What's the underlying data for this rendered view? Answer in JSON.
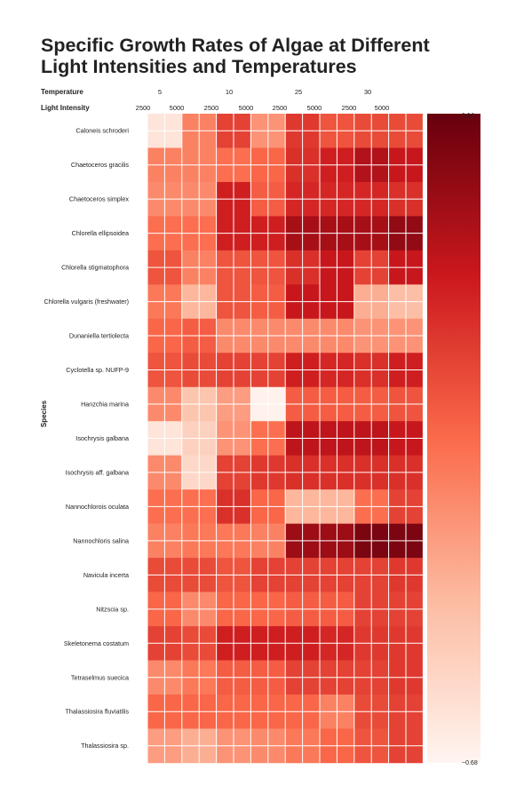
{
  "chart_data": {
    "type": "heatmap",
    "title": "Specific Growth Rates of Algae at Different Light Intensities and Temperatures",
    "row_axis_label": "Species",
    "header_labels": {
      "temperature": "Temperature",
      "light": "Light Intensity"
    },
    "temperatures": [
      "5",
      "10",
      "25",
      "30"
    ],
    "light_intensity_labels": [
      "2500",
      "5000"
    ],
    "colorbar": {
      "min_label": "−0.68",
      "max_label": "1.14",
      "min": -0.68,
      "max": 1.14,
      "colors": [
        "#fff5f0",
        "#fcbba1",
        "#fb6a4a",
        "#cb181d",
        "#67000d"
      ]
    },
    "species": [
      "Caloneis schroderi",
      "Chaetoceros gracilis",
      "Chaetoceros simplex",
      "Chlorella ellipsoidea",
      "Chlorella stigmatophora",
      "Chlorella vulgaris (freshwater)",
      "Dunaniella tertiolecta",
      "Cyclotella sp. NUFP-9",
      "Hanzchia marina",
      "Isochrysis galbana",
      "Isochrysis aff. galbana",
      "Nannochlorois oculata",
      "Nannochloris salina",
      "Navicula incerta",
      "Nitzscia sp.",
      "Skeletonema costatum",
      "Tetraselmus suecica",
      "Thalassiosira fluviatilis",
      "Thalassiosira sp."
    ],
    "values": [
      [
        -0.55,
        -0.55,
        0.1,
        0.1,
        0.45,
        0.45,
        0.0,
        0.0,
        0.5,
        0.5,
        0.35,
        0.35,
        0.4,
        0.4,
        0.4,
        0.4
      ],
      [
        0.1,
        0.1,
        0.1,
        0.1,
        0.2,
        0.2,
        0.25,
        0.25,
        0.55,
        0.55,
        0.65,
        0.65,
        0.8,
        0.8,
        0.7,
        0.7
      ],
      [
        0.05,
        0.05,
        0.05,
        0.05,
        0.65,
        0.65,
        0.3,
        0.3,
        0.6,
        0.6,
        0.6,
        0.6,
        0.6,
        0.6,
        0.55,
        0.55
      ],
      [
        0.2,
        0.2,
        0.2,
        0.2,
        0.65,
        0.65,
        0.65,
        0.65,
        0.85,
        0.85,
        0.85,
        0.85,
        0.85,
        0.85,
        0.95,
        0.95
      ],
      [
        0.35,
        0.35,
        0.1,
        0.1,
        0.35,
        0.35,
        0.35,
        0.35,
        0.55,
        0.55,
        0.7,
        0.7,
        0.45,
        0.45,
        0.7,
        0.7
      ],
      [
        0.15,
        0.15,
        -0.2,
        -0.2,
        0.35,
        0.35,
        0.3,
        0.3,
        0.7,
        0.7,
        0.7,
        0.7,
        -0.15,
        -0.15,
        -0.25,
        -0.25
      ],
      [
        0.25,
        0.25,
        0.3,
        0.3,
        0.05,
        0.05,
        0.05,
        0.05,
        0.05,
        0.05,
        0.05,
        0.05,
        0.0,
        0.0,
        0.0,
        0.0
      ],
      [
        0.35,
        0.35,
        0.4,
        0.4,
        0.45,
        0.45,
        0.45,
        0.45,
        0.65,
        0.65,
        0.6,
        0.6,
        0.55,
        0.55,
        0.65,
        0.65
      ],
      [
        0.05,
        0.05,
        -0.3,
        -0.3,
        -0.05,
        -0.05,
        -0.65,
        -0.65,
        0.3,
        0.3,
        0.3,
        0.3,
        0.3,
        0.3,
        0.35,
        0.35
      ],
      [
        -0.55,
        -0.55,
        -0.4,
        -0.4,
        0.0,
        0.0,
        0.2,
        0.2,
        0.75,
        0.75,
        0.75,
        0.75,
        0.75,
        0.75,
        0.7,
        0.7
      ],
      [
        0.05,
        0.05,
        -0.45,
        -0.45,
        0.45,
        0.45,
        0.5,
        0.5,
        0.55,
        0.55,
        0.55,
        0.55,
        0.55,
        0.55,
        0.55,
        0.55
      ],
      [
        0.2,
        0.2,
        0.2,
        0.2,
        0.55,
        0.55,
        0.25,
        0.25,
        -0.2,
        -0.2,
        -0.2,
        -0.2,
        0.2,
        0.2,
        0.45,
        0.45
      ],
      [
        0.1,
        0.1,
        0.15,
        0.15,
        0.15,
        0.15,
        0.1,
        0.1,
        0.9,
        0.9,
        0.9,
        0.9,
        1.05,
        1.05,
        1.05,
        1.05
      ],
      [
        0.4,
        0.4,
        0.4,
        0.4,
        0.35,
        0.35,
        0.45,
        0.45,
        0.45,
        0.45,
        0.45,
        0.45,
        0.45,
        0.45,
        0.5,
        0.5
      ],
      [
        0.25,
        0.25,
        0.05,
        0.05,
        0.25,
        0.25,
        0.25,
        0.25,
        0.3,
        0.3,
        0.3,
        0.3,
        0.45,
        0.45,
        0.45,
        0.45
      ],
      [
        0.45,
        0.45,
        0.4,
        0.4,
        0.65,
        0.65,
        0.65,
        0.65,
        0.65,
        0.65,
        0.6,
        0.6,
        0.5,
        0.5,
        0.5,
        0.5
      ],
      [
        0.05,
        0.05,
        0.15,
        0.15,
        0.3,
        0.3,
        0.3,
        0.3,
        0.45,
        0.45,
        0.45,
        0.45,
        0.45,
        0.45,
        0.5,
        0.5
      ],
      [
        0.25,
        0.25,
        0.25,
        0.25,
        0.25,
        0.25,
        0.25,
        0.25,
        0.25,
        0.25,
        0.1,
        0.1,
        0.4,
        0.4,
        0.45,
        0.45
      ],
      [
        -0.05,
        -0.05,
        -0.15,
        -0.15,
        0.0,
        0.0,
        0.05,
        0.05,
        0.15,
        0.15,
        0.25,
        0.25,
        0.35,
        0.35,
        0.45,
        0.45
      ]
    ]
  }
}
